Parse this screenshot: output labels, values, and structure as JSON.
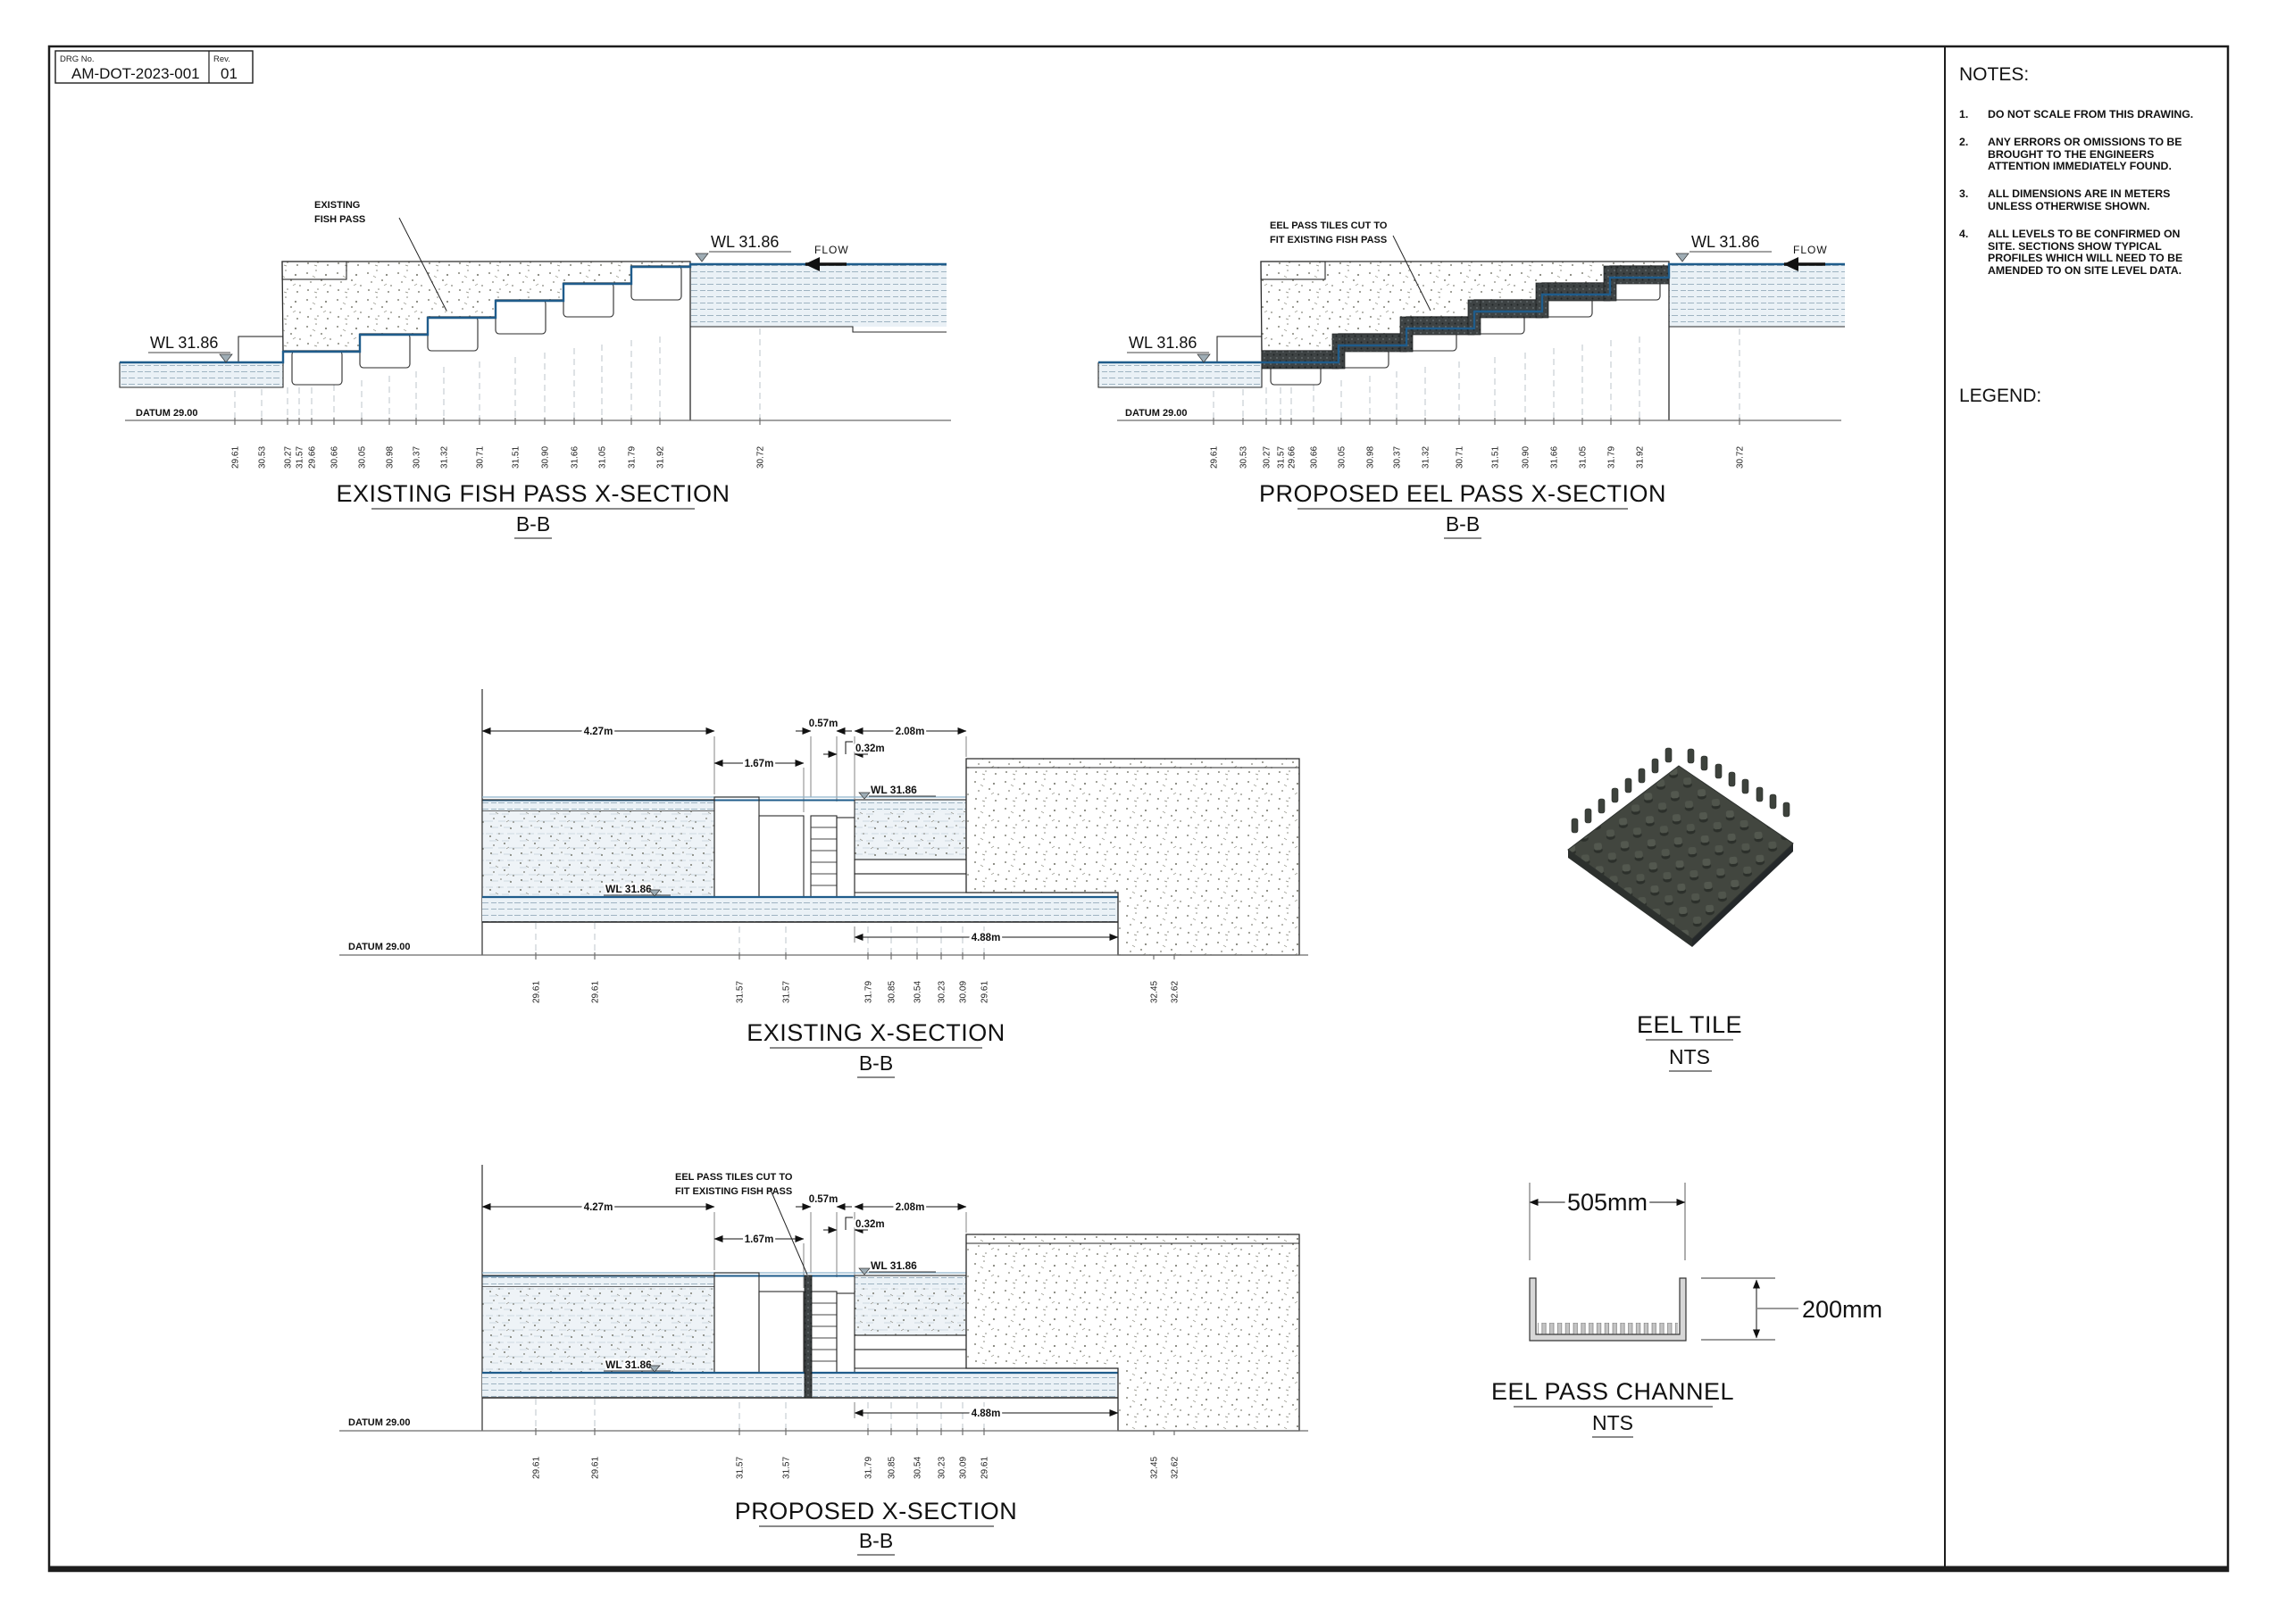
{
  "title_block": {
    "drg_no_label": "DRG No.",
    "drg_no": "AM-DOT-2023-001",
    "rev_label": "Rev.",
    "rev": "01"
  },
  "notes": {
    "heading": "NOTES:",
    "items": [
      {
        "num": "1.",
        "text": "DO NOT SCALE FROM THIS DRAWING."
      },
      {
        "num": "2.",
        "text": "ANY ERRORS OR OMISSIONS TO BE BROUGHT TO THE ENGINEERS ATTENTION IMMEDIATELY FOUND."
      },
      {
        "num": "3.",
        "text": "ALL DIMENSIONS ARE IN METERS UNLESS OTHERWISE SHOWN."
      },
      {
        "num": "4.",
        "text": "ALL LEVELS TO BE CONFIRMED ON SITE. SECTIONS SHOW TYPICAL PROFILES WHICH WILL NEED TO BE AMENDED TO ON SITE LEVEL DATA."
      }
    ]
  },
  "legend": {
    "heading": "LEGEND:"
  },
  "labels": {
    "wl": "WL 31.86",
    "flow": "FLOW",
    "datum": "DATUM 29.00",
    "fish_pass_note_1": "EXISTING",
    "fish_pass_note_2": "FISH PASS",
    "eel_note_1": "EEL PASS TILES CUT TO",
    "eel_note_2": "FIT EXISTING FISH PASS"
  },
  "dims": {
    "w427": "4.27m",
    "w167": "1.67m",
    "w057": "0.57m",
    "w032": "0.32m",
    "w208": "2.08m",
    "w488": "4.88m",
    "channel_width": "505mm",
    "channel_height": "200mm"
  },
  "sections": {
    "existing_fish_pass": {
      "title": "EXISTING FISH PASS X-SECTION",
      "subtitle": "B-B",
      "ticks": [
        "29.61",
        "30.53",
        "30.27",
        "31.57",
        "29.66",
        "30.66",
        "30.05",
        "30.98",
        "30.37",
        "31.32",
        "30.71",
        "31.51",
        "30.90",
        "31.66",
        "31.05",
        "31.79",
        "31.92",
        "30.72"
      ]
    },
    "proposed_eel_pass": {
      "title": "PROPOSED EEL PASS X-SECTION",
      "subtitle": "B-B",
      "ticks": [
        "29.61",
        "30.53",
        "30.27",
        "31.57",
        "29.66",
        "30.66",
        "30.05",
        "30.98",
        "30.37",
        "31.32",
        "30.71",
        "31.51",
        "30.90",
        "31.66",
        "31.05",
        "31.79",
        "31.92",
        "30.72"
      ]
    },
    "existing_xsection": {
      "title": "EXISTING X-SECTION",
      "subtitle": "B-B",
      "ticks": [
        "29.61",
        "29.61",
        "31.57",
        "31.57",
        "31.79",
        "30.85",
        "30.54",
        "30.23",
        "30.09",
        "29.61",
        "32.45",
        "32.62"
      ]
    },
    "proposed_xsection": {
      "title": "PROPOSED X-SECTION",
      "subtitle": "B-B",
      "ticks": [
        "29.61",
        "29.61",
        "31.57",
        "31.57",
        "31.79",
        "30.85",
        "30.54",
        "30.23",
        "30.09",
        "29.61",
        "32.45",
        "32.62"
      ]
    },
    "eel_tile": {
      "title": "EEL TILE",
      "subtitle": "NTS"
    },
    "eel_pass_channel": {
      "title": "EEL PASS CHANNEL",
      "subtitle": "NTS"
    }
  }
}
